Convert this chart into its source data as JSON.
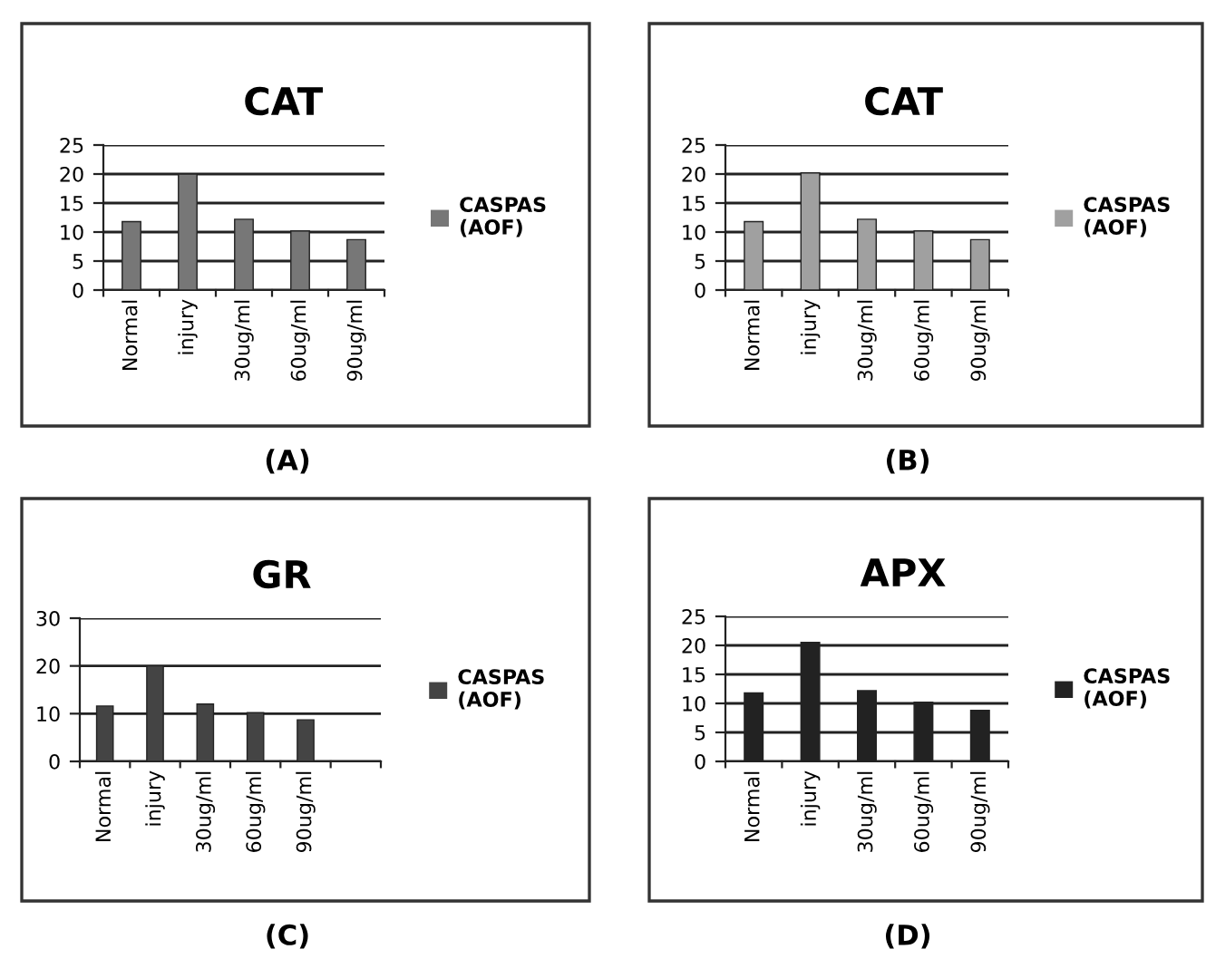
{
  "chart_data": [
    {
      "type": "bar",
      "title": "CAT",
      "categories": [
        "Normal",
        "injury",
        "30ug/ml",
        "60ug/ml",
        "90ug/ml"
      ],
      "series": [
        {
          "name": "CASPAS\n(AOF)",
          "color": "#777777",
          "values": [
            11.8,
            20,
            12.2,
            10.2,
            8.7
          ]
        }
      ],
      "ylim": [
        0,
        25
      ],
      "yticks": [
        0,
        5,
        10,
        15,
        20,
        25
      ],
      "grid": "y",
      "legend": "right",
      "annotations": [
        "(A)"
      ]
    },
    {
      "type": "bar",
      "title": "CAT",
      "categories": [
        "Normal",
        "injury",
        "30ug/ml",
        "60ug/ml",
        "90ug/ml"
      ],
      "series": [
        {
          "name": "CASPAS\n(AOF)",
          "color": "#a0a0a0",
          "values": [
            11.8,
            20.2,
            12.2,
            10.2,
            8.7
          ]
        }
      ],
      "ylim": [
        0,
        25
      ],
      "yticks": [
        0,
        5,
        10,
        15,
        20,
        25
      ],
      "grid": "y",
      "legend": "right",
      "annotations": [
        "(B)"
      ]
    },
    {
      "type": "bar",
      "title": "GR",
      "categories": [
        "Normal",
        "injury",
        "30ug/ml",
        "60ug/ml",
        "90ug/ml",
        null
      ],
      "series": [
        {
          "name": "CASPAS\n(AOF)",
          "color": "#444444",
          "values": [
            11.6,
            20,
            12,
            10.2,
            8.7,
            null
          ]
        }
      ],
      "ylim": [
        0,
        30
      ],
      "yticks": [
        0,
        10,
        20,
        30
      ],
      "grid": "y",
      "legend": "right",
      "annotations": [
        "(C)"
      ]
    },
    {
      "type": "bar",
      "title": "APX",
      "categories": [
        "Normal",
        "injury",
        "30ug/ml",
        "60ug/ml",
        "90ug/ml"
      ],
      "series": [
        {
          "name": "CASPAS\n(AOF)",
          "color": "#222222",
          "values": [
            11.8,
            20.5,
            12.2,
            10.2,
            8.8
          ]
        }
      ],
      "ylim": [
        0,
        25
      ],
      "yticks": [
        0,
        5,
        10,
        15,
        20,
        25
      ],
      "grid": "y",
      "legend": "right",
      "annotations": [
        "(D)"
      ]
    }
  ]
}
